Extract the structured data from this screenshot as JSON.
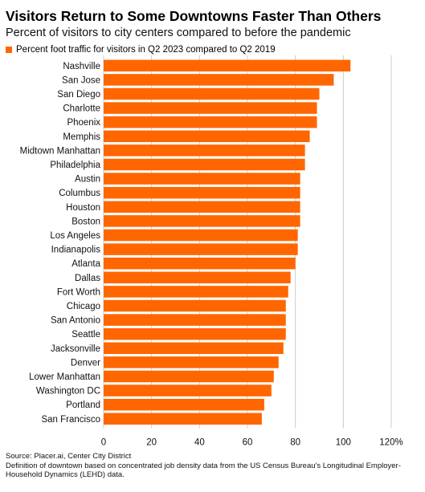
{
  "header": {
    "title": "Visitors Return to Some Downtowns Faster Than Others",
    "subtitle": "Percent of visitors to city centers compared to before the pandemic"
  },
  "legend": {
    "label": "Percent foot traffic for visitors in Q2 2023 compared to Q2 2019"
  },
  "colors": {
    "bar": "#ff6600",
    "gridline": "#cccccc"
  },
  "chart_data": {
    "type": "bar",
    "orientation": "horizontal",
    "categories": [
      "Nashville",
      "San Jose",
      "San Diego",
      "Charlotte",
      "Phoenix",
      "Memphis",
      "Midtown Manhattan",
      "Philadelphia",
      "Austin",
      "Columbus",
      "Houston",
      "Boston",
      "Los Angeles",
      "Indianapolis",
      "Atlanta",
      "Dallas",
      "Fort Worth",
      "Chicago",
      "San Antonio",
      "Seattle",
      "Jacksonville",
      "Denver",
      "Lower Manhattan",
      "Washington DC",
      "Portland",
      "San Francisco"
    ],
    "series": [
      {
        "name": "Percent foot traffic for visitors in Q2 2023 compared to Q2 2019",
        "values": [
          103,
          96,
          90,
          89,
          89,
          86,
          84,
          84,
          82,
          82,
          82,
          82,
          81,
          81,
          80,
          78,
          77,
          76,
          76,
          76,
          75,
          73,
          71,
          70,
          67,
          66
        ]
      }
    ],
    "xlim": [
      0,
      120
    ],
    "xticks": [
      "0",
      "20",
      "40",
      "60",
      "80",
      "100",
      "120%"
    ],
    "grid": true,
    "legend_position": "top-left"
  },
  "footer": {
    "source": "Source: Placer.ai, Center City District",
    "note": "Definition of downtown based on concentrated job density data from the US Census Bureau's Longitudinal Employer-Household Dynamics (LEHD) data."
  }
}
